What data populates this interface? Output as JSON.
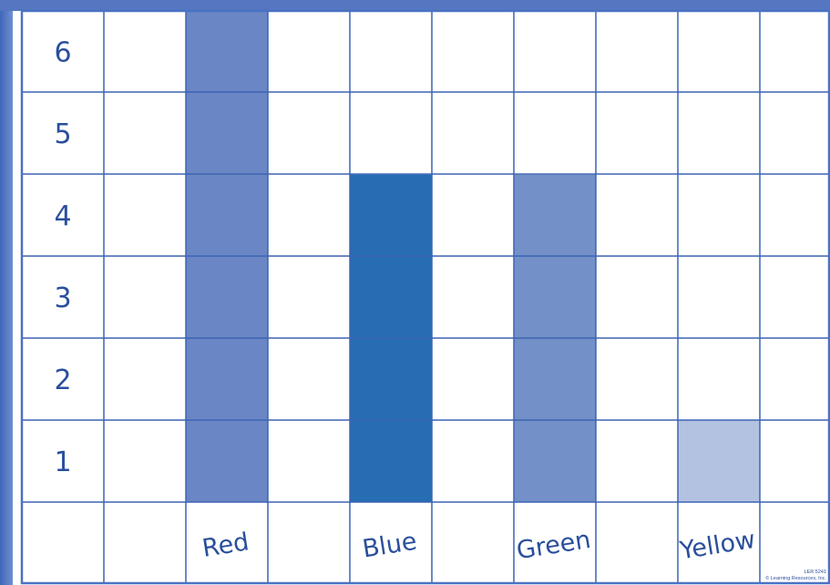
{
  "chart_data": {
    "type": "bar",
    "categories": [
      "Red",
      "Blue",
      "Green",
      "Yellow"
    ],
    "values": [
      6,
      4,
      4,
      1
    ],
    "y_ticks": [
      "1",
      "2",
      "3",
      "4",
      "5",
      "6"
    ],
    "ylim": [
      0,
      6
    ],
    "grid": true,
    "colors": {
      "Red": "#6a86c4",
      "Blue": "#266db3",
      "Green": "#7390c8",
      "Yellow": "#b4c2e1",
      "grid": "#3d64b3",
      "frame": "#4a72c4"
    }
  },
  "footer": {
    "code": "LER 5241",
    "copyright": "© Learning Resources, Inc."
  }
}
